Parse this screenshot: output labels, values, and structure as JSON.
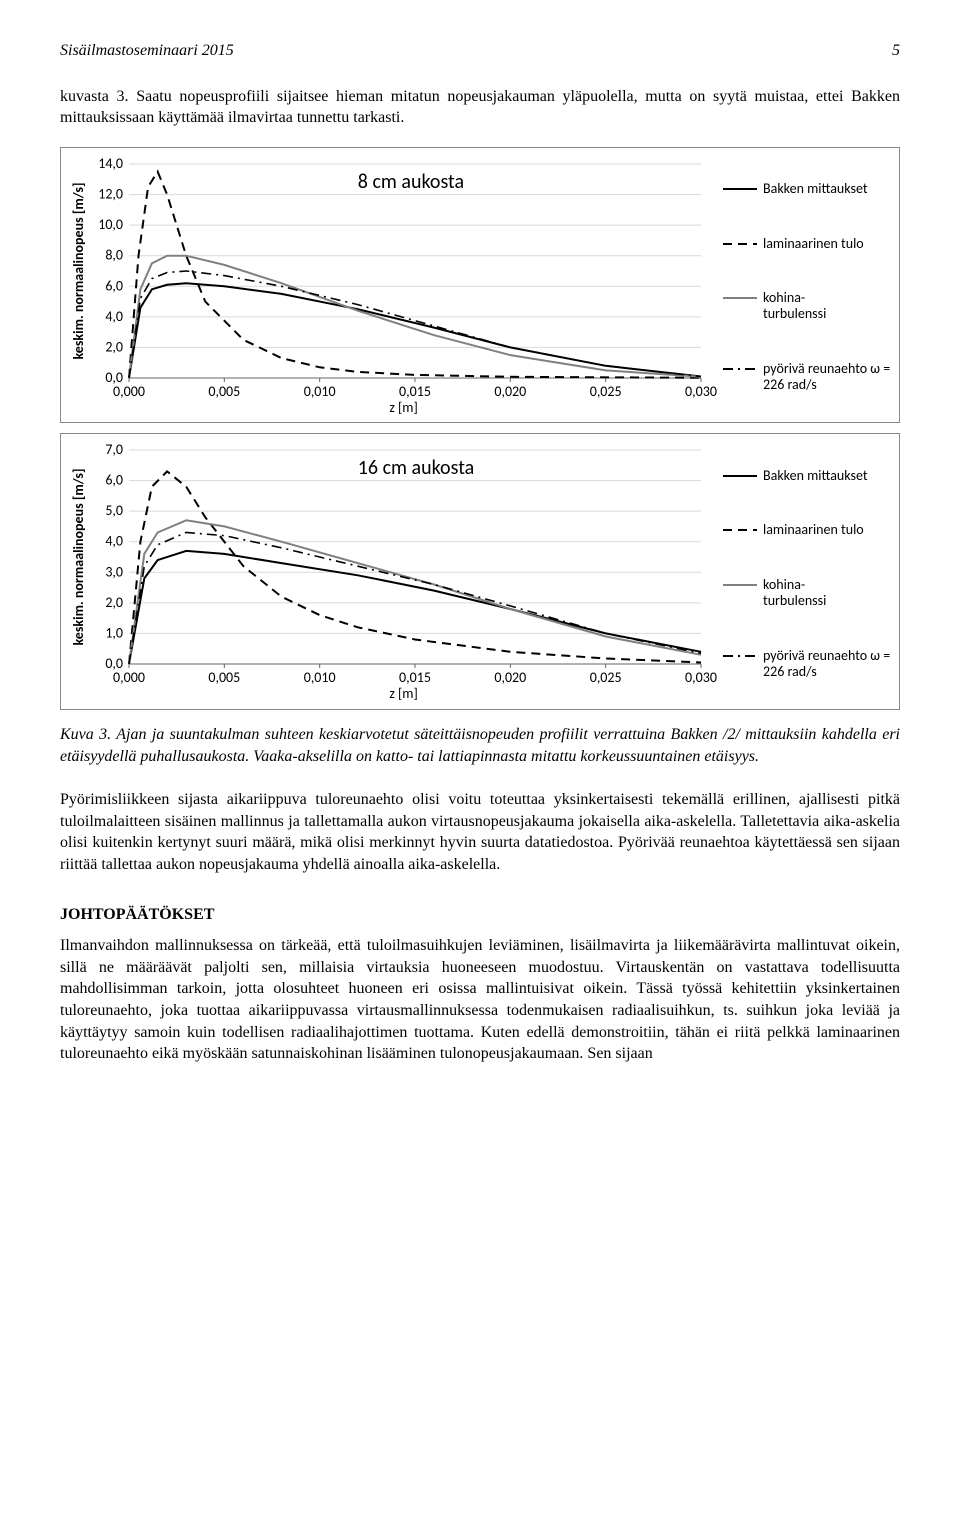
{
  "header": {
    "left": "Sisäilmastoseminaari 2015",
    "page": "5"
  },
  "intro_para": "kuvasta 3. Saatu nopeusprofiili sijaitsee hieman mitatun nopeusjakauman yläpuolella, mutta on syytä muistaa, ettei Bakken mittauksissaan käyttämää ilmavirtaa tunnettu tarkasti.",
  "chart1": {
    "title": "8 cm aukosta",
    "ylabel": "keskim. normaalinopeus [m/s]",
    "xlabel": "z [m]",
    "grid_color": "#d9d9d9",
    "background_color": "#ffffff",
    "xlim": [
      0.0,
      0.03
    ],
    "ylim": [
      0.0,
      14.0
    ],
    "xticks": [
      "0,000",
      "0,005",
      "0,010",
      "0,015",
      "0,020",
      "0,025",
      "0,030"
    ],
    "yticks": [
      "0,0",
      "2,0",
      "4,0",
      "6,0",
      "8,0",
      "10,0",
      "12,0",
      "14,0"
    ],
    "series": [
      {
        "name": "Bakken mittaukset",
        "color": "#000000",
        "dash": "solid",
        "width": 2,
        "x": [
          0,
          0.0006,
          0.0012,
          0.002,
          0.003,
          0.005,
          0.008,
          0.012,
          0.016,
          0.02,
          0.025,
          0.03
        ],
        "y": [
          0,
          4.6,
          5.8,
          6.1,
          6.2,
          6.0,
          5.5,
          4.5,
          3.3,
          2.0,
          0.8,
          0.1
        ]
      },
      {
        "name": "laminaarinen tulo",
        "color": "#000000",
        "dash": "dash",
        "width": 2,
        "x": [
          0,
          0.0005,
          0.001,
          0.0015,
          0.002,
          0.003,
          0.004,
          0.006,
          0.008,
          0.01,
          0.012,
          0.015,
          0.02,
          0.03
        ],
        "y": [
          0,
          8.0,
          12.5,
          13.5,
          12.0,
          8.0,
          5.0,
          2.5,
          1.3,
          0.7,
          0.4,
          0.2,
          0.08,
          0.01
        ]
      },
      {
        "name": "kohinaturbulenssi",
        "color": "#808080",
        "dash": "solid",
        "width": 2,
        "x": [
          0,
          0.0006,
          0.0012,
          0.002,
          0.003,
          0.005,
          0.008,
          0.012,
          0.016,
          0.02,
          0.025,
          0.03
        ],
        "y": [
          0,
          5.8,
          7.5,
          8.0,
          8.0,
          7.4,
          6.2,
          4.4,
          2.8,
          1.5,
          0.5,
          0.08
        ]
      },
      {
        "name": "pyörivä reunaehto ω = 226 rad/s",
        "color": "#000000",
        "dash": "dashdot",
        "width": 1.6,
        "x": [
          0,
          0.0006,
          0.0012,
          0.002,
          0.003,
          0.005,
          0.008,
          0.012,
          0.016,
          0.02,
          0.025,
          0.03
        ],
        "y": [
          0,
          5.2,
          6.5,
          6.9,
          7.0,
          6.7,
          6.0,
          4.8,
          3.4,
          2.0,
          0.8,
          0.1
        ]
      }
    ],
    "legend": [
      {
        "label": "Bakken mittaukset",
        "dash": "solid",
        "color": "#000000"
      },
      {
        "label": "laminaarinen tulo",
        "dash": "dash",
        "color": "#000000"
      },
      {
        "label": "kohina-\nturbulenssi",
        "dash": "solid",
        "color": "#808080"
      },
      {
        "label": "pyörivä reunaehto ω = 226 rad/s",
        "dash": "dashdot",
        "color": "#000000"
      }
    ]
  },
  "chart2": {
    "title": "16 cm aukosta",
    "ylabel": "keskim. normaalinopeus [m/s]",
    "xlabel": "z [m]",
    "grid_color": "#d9d9d9",
    "background_color": "#ffffff",
    "xlim": [
      0.0,
      0.03
    ],
    "ylim": [
      0.0,
      7.0
    ],
    "xticks": [
      "0,000",
      "0,005",
      "0,010",
      "0,015",
      "0,020",
      "0,025",
      "0,030"
    ],
    "yticks": [
      "0,0",
      "1,0",
      "2,0",
      "3,0",
      "4,0",
      "5,0",
      "6,0",
      "7,0"
    ],
    "series": [
      {
        "name": "Bakken mittaukset",
        "color": "#000000",
        "dash": "solid",
        "width": 2,
        "x": [
          0,
          0.0008,
          0.0015,
          0.003,
          0.005,
          0.008,
          0.012,
          0.016,
          0.02,
          0.025,
          0.03
        ],
        "y": [
          0,
          2.8,
          3.4,
          3.7,
          3.6,
          3.3,
          2.9,
          2.4,
          1.8,
          1.0,
          0.4
        ]
      },
      {
        "name": "laminaarinen tulo",
        "color": "#000000",
        "dash": "dash",
        "width": 2,
        "x": [
          0,
          0.0006,
          0.0012,
          0.002,
          0.003,
          0.004,
          0.006,
          0.008,
          0.01,
          0.012,
          0.015,
          0.02,
          0.025,
          0.03
        ],
        "y": [
          0,
          4.0,
          5.8,
          6.3,
          5.8,
          4.8,
          3.2,
          2.2,
          1.6,
          1.2,
          0.8,
          0.4,
          0.18,
          0.05
        ]
      },
      {
        "name": "kohinaturbulenssi",
        "color": "#808080",
        "dash": "solid",
        "width": 2,
        "x": [
          0,
          0.0008,
          0.0015,
          0.003,
          0.005,
          0.008,
          0.012,
          0.016,
          0.02,
          0.025,
          0.03
        ],
        "y": [
          0,
          3.6,
          4.3,
          4.7,
          4.5,
          4.0,
          3.3,
          2.6,
          1.8,
          0.9,
          0.3
        ]
      },
      {
        "name": "pyörivä reunaehto ω = 226 rad/s",
        "color": "#000000",
        "dash": "dashdot",
        "width": 1.6,
        "x": [
          0,
          0.0008,
          0.0015,
          0.003,
          0.005,
          0.008,
          0.012,
          0.016,
          0.02,
          0.025,
          0.03
        ],
        "y": [
          0,
          3.2,
          3.9,
          4.3,
          4.2,
          3.8,
          3.2,
          2.6,
          1.9,
          1.0,
          0.35
        ]
      }
    ],
    "legend": [
      {
        "label": "Bakken mittaukset",
        "dash": "solid",
        "color": "#000000"
      },
      {
        "label": "laminaarinen tulo",
        "dash": "dash",
        "color": "#000000"
      },
      {
        "label": "kohina-\nturbulenssi",
        "dash": "solid",
        "color": "#808080"
      },
      {
        "label": "pyörivä reunaehto ω = 226 rad/s",
        "dash": "dashdot",
        "color": "#000000"
      }
    ]
  },
  "figure_caption": "Kuva 3. Ajan ja suuntakulman suhteen keskiarvotetut säteittäisnopeuden profiilit verrattuina Bakken /2/ mittauksiin kahdella eri etäisyydellä puhallusaukosta. Vaaka-akselilla on katto- tai lattiapinnasta mitattu korkeussuuntainen etäisyys.",
  "para2": "Pyörimisliikkeen sijasta aikariippuva tuloreunaehto olisi voitu toteuttaa yksinkertaisesti tekemällä erillinen, ajallisesti pitkä tuloilmalaitteen sisäinen mallinnus ja tallettamalla aukon virtausnopeusjakauma jokaisella aika-askelella. Talletettavia aika-askelia olisi kuitenkin kertynyt suuri määrä, mikä olisi merkinnyt hyvin suurta datatiedostoa. Pyörivää reunaehtoa käytettäessä sen sijaan riittää tallettaa aukon nopeusjakauma yhdellä ainoalla aika-askelella.",
  "section_heading": "JOHTOPÄÄTÖKSET",
  "para3": "Ilmanvaihdon mallinnuksessa on tärkeää, että tuloilmasuihkujen leviäminen, lisäilmavirta ja liikemäärävirta mallintuvat oikein, sillä ne määräävät paljolti sen, millaisia virtauksia huoneeseen muodostuu. Virtauskentän on vastattava todellisuutta mahdollisimman tarkoin, jotta olosuhteet huoneen eri osissa mallintuisivat oikein. Tässä työssä kehitettiin yksinkertainen tuloreunaehto, joka tuottaa aikariippuvassa virtausmallinnuksessa todenmukaisen radiaalisuihkun, ts. suihkun joka leviää ja käyttäytyy samoin kuin todellisen radiaalihajottimen tuottama. Kuten edellä demonstroitiin, tähän ei riitä pelkkä laminaarinen tuloreunaehto eikä myöskään satunnaiskohinan lisääminen tulonopeusjakaumaan. Sen sijaan"
}
